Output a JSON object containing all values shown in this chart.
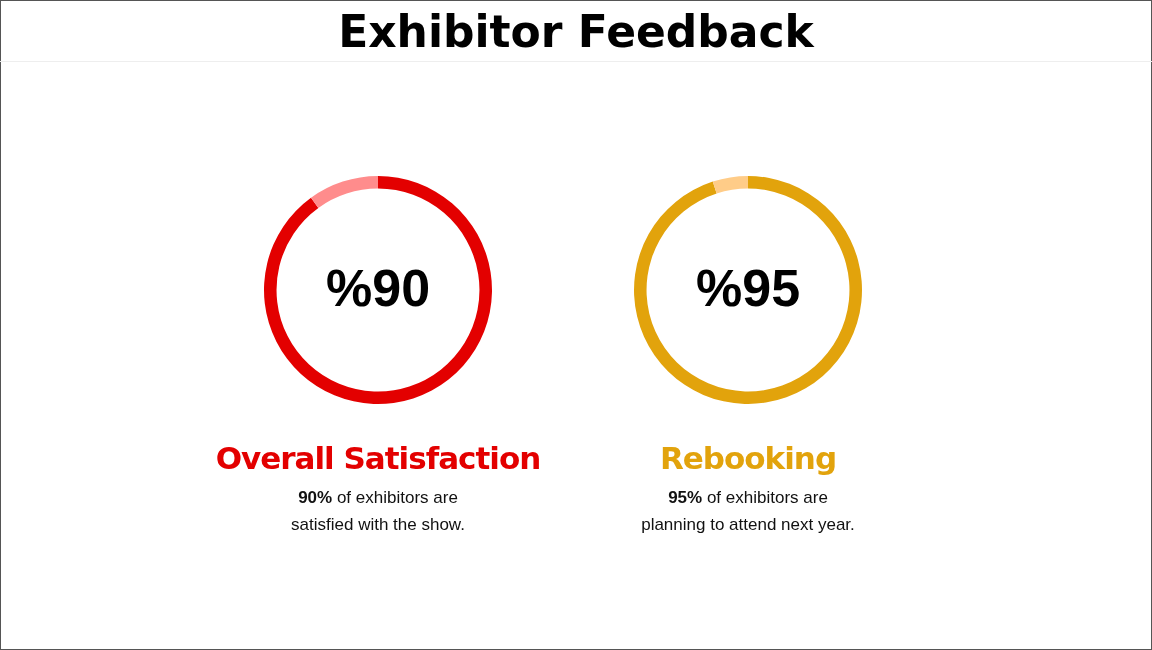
{
  "chart_data": [
    {
      "type": "other",
      "title": "Exhibitor Feedback"
    },
    {
      "type": "donut",
      "title": "Overall Satisfaction",
      "categories": [
        null,
        null
      ],
      "values": [
        90,
        10
      ],
      "colors": [
        "#e30000",
        "#ff8c8c"
      ],
      "legend": false,
      "annotations": [
        "%90",
        "90% of exhibitors are satisfied with the show."
      ]
    },
    {
      "type": "donut",
      "title": "Rebooking",
      "categories": [
        null,
        null
      ],
      "values": [
        95,
        5
      ],
      "colors": [
        "#e2a30c",
        "#ffcc88"
      ],
      "legend": false,
      "annotations": [
        "%95",
        "95% of exhibitors are planning to attend next year."
      ]
    }
  ]
}
